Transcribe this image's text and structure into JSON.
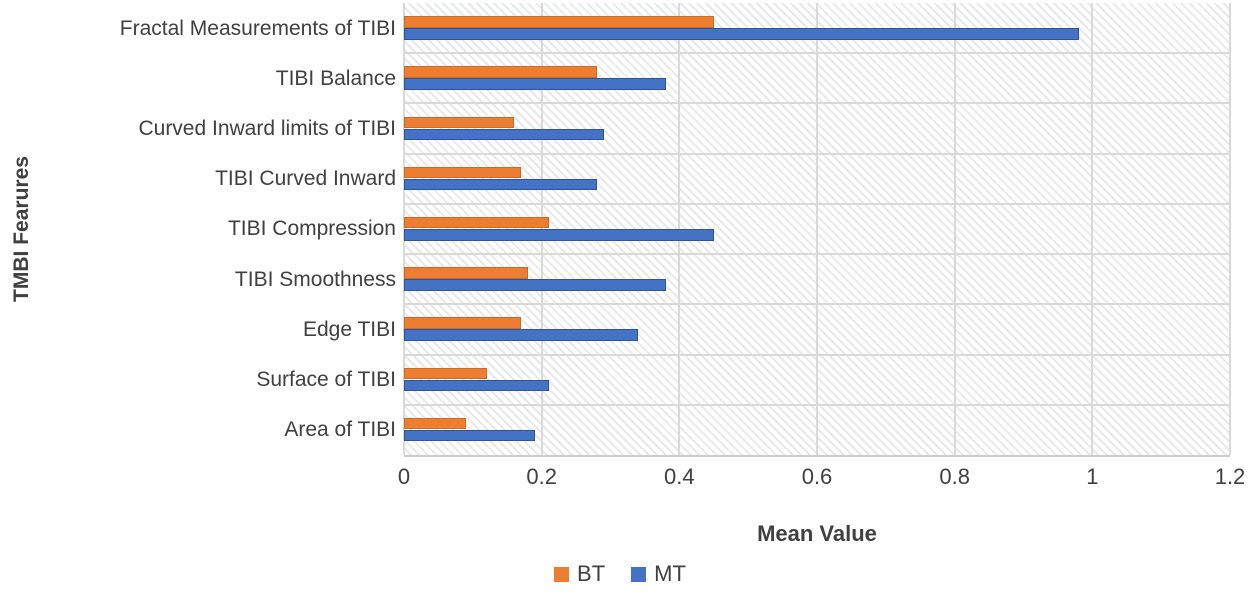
{
  "chart_data": {
    "type": "bar",
    "orientation": "horizontal",
    "title": "",
    "categories": [
      "Fractal Measurements of TIBI",
      "TIBI Balance",
      "Curved Inward limits of TIBI",
      "TIBI Curved Inward",
      "TIBI Compression",
      "TIBI Smoothness",
      "Edge TIBI",
      "Surface of TIBI",
      "Area of TIBI"
    ],
    "series": [
      {
        "name": "BT",
        "color": "#ED7D31",
        "edge_color": "#c96a26",
        "values": [
          0.45,
          0.28,
          0.16,
          0.17,
          0.21,
          0.18,
          0.17,
          0.12,
          0.09
        ]
      },
      {
        "name": "MT",
        "color": "#4472C4",
        "edge_color": "#2e559c",
        "values": [
          0.98,
          0.38,
          0.29,
          0.28,
          0.45,
          0.38,
          0.34,
          0.21,
          0.19
        ]
      }
    ],
    "xlabel": "Mean Value",
    "ylabel": "TMBI Fearures",
    "xlim": [
      0,
      1.2
    ],
    "xticks": [
      "0",
      "0.2",
      "0.4",
      "0.6",
      "0.8",
      "1",
      "1.2"
    ],
    "xtick_values": [
      0,
      0.2,
      0.4,
      0.6,
      0.8,
      1,
      1.2
    ],
    "grid": true,
    "plot_background": "diagonal-hatch",
    "legend_position": "bottom",
    "colors": {
      "text": "#404040",
      "gridline": "#d9d9d9",
      "axis_line": "#cccccc",
      "hatch_stripe": "#e9e9e9"
    }
  }
}
